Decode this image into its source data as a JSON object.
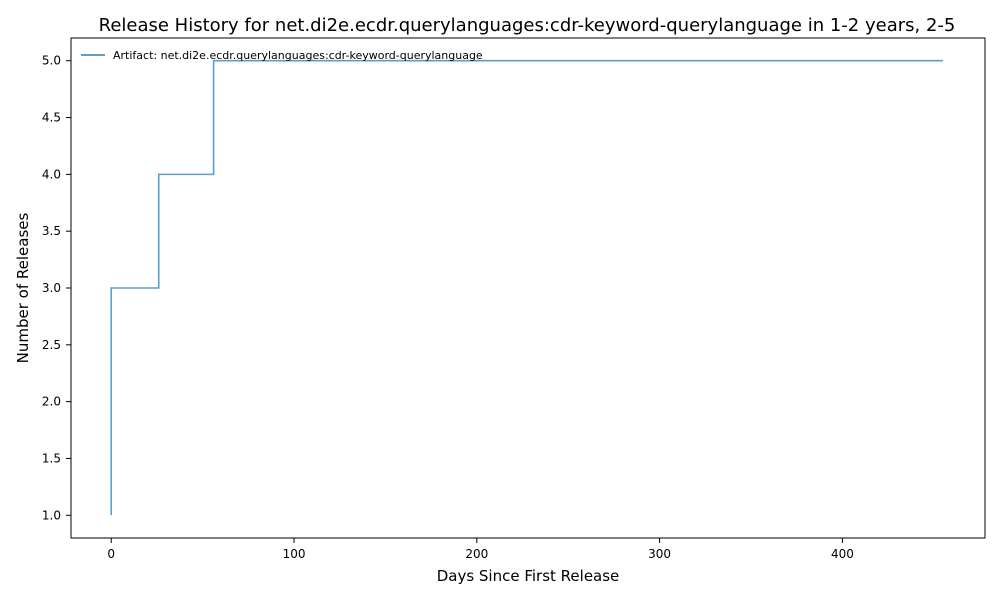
{
  "chart_data": {
    "type": "line",
    "title": "Release History for net.di2e.ecdr.querylanguages:cdr-keyword-querylanguage in 1-2 years, 2-5",
    "xlabel": "Days Since First Release",
    "ylabel": "Number of Releases",
    "xlim": [
      -22,
      478
    ],
    "ylim": [
      0.8,
      5.2
    ],
    "x_ticks": [
      0,
      100,
      200,
      300,
      400
    ],
    "y_ticks": [
      1.0,
      1.5,
      2.0,
      2.5,
      3.0,
      3.5,
      4.0,
      4.5,
      5.0
    ],
    "x_tick_labels": [
      "0",
      "100",
      "200",
      "300",
      "400"
    ],
    "y_tick_labels": [
      "1.0",
      "1.5",
      "2.0",
      "2.5",
      "3.0",
      "3.5",
      "4.0",
      "4.5",
      "5.0"
    ],
    "grid": false,
    "legend_position": "top-left",
    "series": [
      {
        "name": "Artifact: net.di2e.ecdr.querylanguages:cdr-keyword-querylanguage",
        "color": "#5b9ec9",
        "step": "post",
        "x": [
          0,
          0,
          26,
          56,
          455
        ],
        "y": [
          1,
          3,
          4,
          5,
          5
        ]
      }
    ]
  }
}
